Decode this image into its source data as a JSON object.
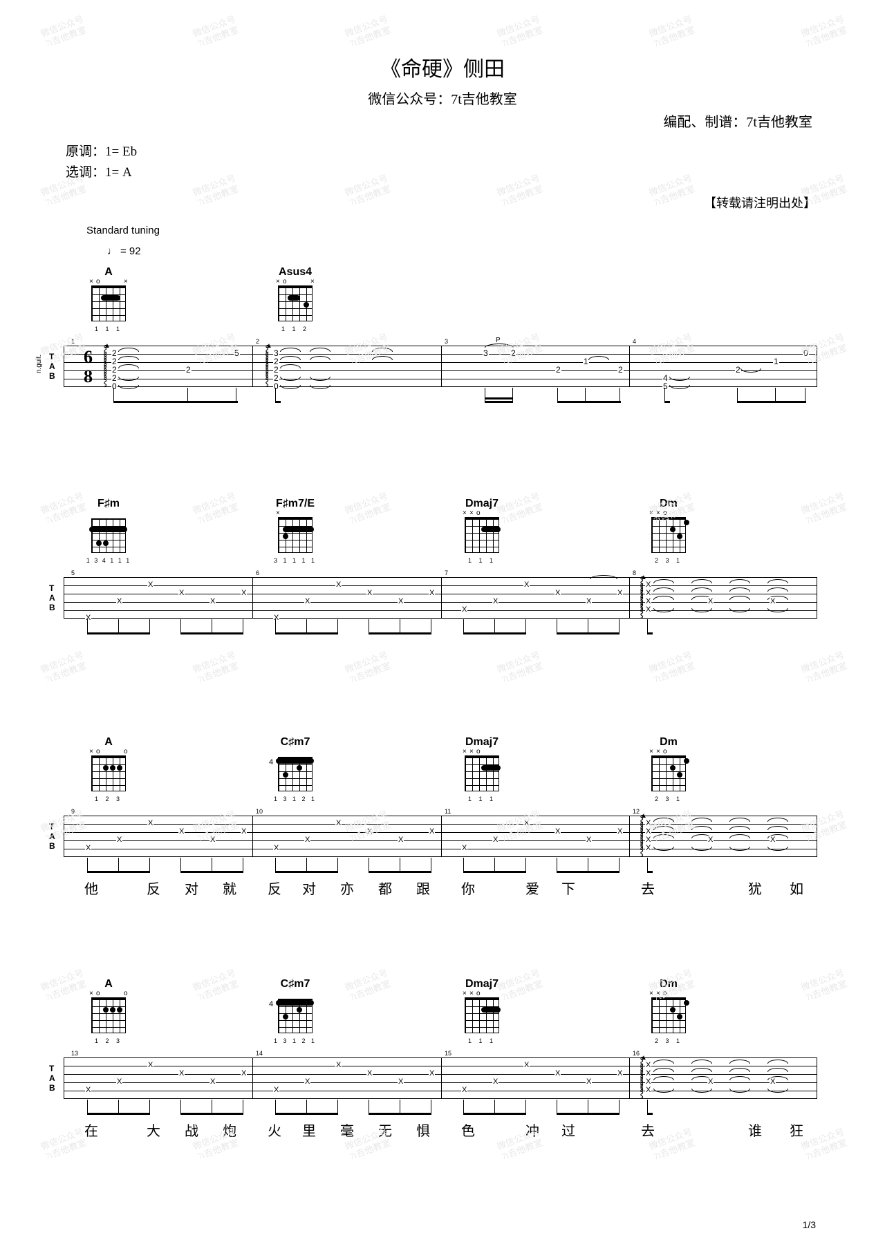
{
  "title": "《命硬》侧田",
  "subtitle": "微信公众号：7t吉他教室",
  "credit": "编配、制谱：7t吉他教室",
  "original_key": "原调：1= Eb",
  "play_key": "选调：1= A",
  "reproduce_note": "【转载请注明出处】",
  "tuning": "Standard tuning",
  "tempo": "= 92",
  "page": "1/3",
  "watermark_text1": "微信公众号",
  "watermark_text2": "7t吉他教室",
  "chords": {
    "A": "A",
    "Asus4": "Asus4",
    "Fsharpm": "F♯m",
    "Fsharpm7E": "F♯m7/E",
    "Dmaj7": "Dmaj7",
    "Dm": "Dm",
    "Csharpm7": "C♯m7"
  },
  "fingerings": {
    "A": "1 1 1",
    "Asus4": "1 1 2",
    "Fsharpm": "1 3 4 1 1 1",
    "Fsharpm7E": "3 1 1 1 1",
    "Dmaj7": "1 1 1",
    "Dm": "2 3 1",
    "A2": "1 2 3",
    "Csharpm7": "1 3 1 2 1"
  },
  "bar_labels": {
    "b1": "1",
    "b2": "2",
    "b3": "3",
    "b4": "4",
    "b5": "5",
    "b6": "6",
    "b7": "7",
    "b8": "8",
    "b9": "9",
    "b10": "10",
    "b11": "11",
    "b12": "12",
    "b13": "13",
    "b14": "14",
    "b15": "15",
    "b16": "16"
  },
  "time_sig_top": "6",
  "time_sig_bot": "8",
  "tab_label_T": "T",
  "tab_label_A": "A",
  "tab_label_B": "B",
  "inst": "n.guit.",
  "pull_off": "P",
  "fret4": "4",
  "lyrics_s3": {
    "l1": "他",
    "l2": "反",
    "l3": "对",
    "l4": "就",
    "l5": "反",
    "l6": "对",
    "l7": "亦",
    "l8": "都",
    "l9": "跟",
    "l10": "你",
    "l11": "爱",
    "l12": "下",
    "l13": "去",
    "l14": "犹",
    "l15": "如"
  },
  "lyrics_s4": {
    "l1": "在",
    "l2": "大",
    "l3": "战",
    "l4": "炮",
    "l5": "火",
    "l6": "里",
    "l7": "毫",
    "l8": "无",
    "l9": "惧",
    "l10": "色",
    "l11": "冲",
    "l12": "过",
    "l13": "去",
    "l14": "谁",
    "l15": "狂"
  },
  "tab_notes": {
    "s1_b1": [
      "2",
      "2",
      "2",
      "2",
      "0",
      "2",
      "5"
    ],
    "s1_b2": [
      "3",
      "2",
      "2",
      "2",
      "0"
    ],
    "s1_b3": [
      "3",
      "2",
      "2",
      "1",
      "2"
    ],
    "s1_b4": [
      "4",
      "5",
      "2",
      "1",
      "0"
    ]
  }
}
